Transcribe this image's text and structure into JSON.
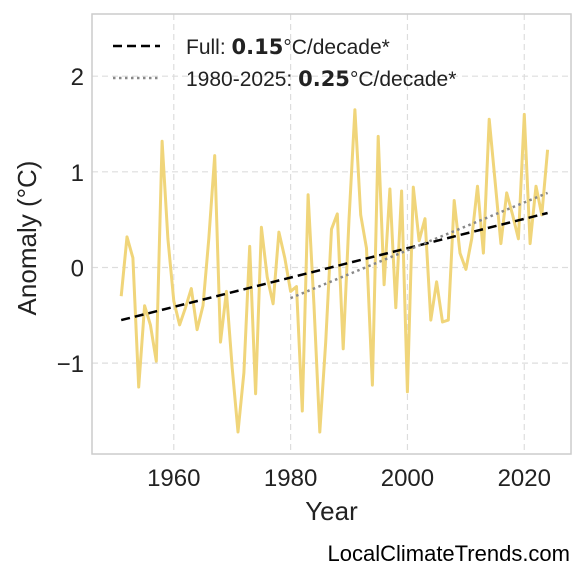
{
  "chart_data": {
    "type": "line",
    "xlabel": "Year",
    "ylabel": "Anomaly (°C)",
    "xlim": [
      1946,
      2028
    ],
    "ylim": [
      -1.95,
      2.65
    ],
    "x_ticks": [
      1960,
      1980,
      2000,
      2020
    ],
    "y_ticks": [
      -1,
      0,
      1,
      2
    ],
    "y_tick_labels": [
      "−1",
      "0",
      "1",
      "2"
    ],
    "grid": true,
    "legend_position": "top-left",
    "colors": {
      "anomaly": "#f0d57a",
      "full_trend": "#000000",
      "recent_trend": "#888888"
    },
    "series": [
      {
        "role": "anomaly",
        "x": [
          1951,
          1952,
          1953,
          1954,
          1955,
          1956,
          1957,
          1958,
          1959,
          1960,
          1961,
          1962,
          1963,
          1964,
          1965,
          1966,
          1967,
          1968,
          1969,
          1970,
          1971,
          1972,
          1973,
          1974,
          1975,
          1976,
          1977,
          1978,
          1979,
          1980,
          1981,
          1982,
          1983,
          1984,
          1985,
          1986,
          1987,
          1988,
          1989,
          1990,
          1991,
          1992,
          1993,
          1994,
          1995,
          1996,
          1997,
          1998,
          1999,
          2000,
          2001,
          2002,
          2003,
          2004,
          2005,
          2006,
          2007,
          2008,
          2009,
          2010,
          2011,
          2012,
          2013,
          2014,
          2015,
          2016,
          2017,
          2018,
          2019,
          2020,
          2021,
          2022,
          2023,
          2024
        ],
        "y": [
          -0.3,
          0.32,
          0.1,
          -1.25,
          -0.4,
          -0.6,
          -0.98,
          1.32,
          0.3,
          -0.35,
          -0.6,
          -0.42,
          -0.22,
          -0.65,
          -0.4,
          0.3,
          1.17,
          -0.78,
          -0.25,
          -1.05,
          -1.72,
          -1.1,
          0.22,
          -1.32,
          0.42,
          -0.1,
          -0.38,
          0.37,
          0.1,
          -0.25,
          -0.2,
          -1.5,
          0.76,
          -0.4,
          -1.72,
          -0.78,
          0.4,
          0.56,
          -0.85,
          0.5,
          1.65,
          0.55,
          0.2,
          -1.23,
          1.37,
          -0.18,
          0.82,
          -0.42,
          0.8,
          -1.3,
          0.84,
          0.28,
          0.51,
          -0.55,
          -0.15,
          -0.57,
          -0.55,
          0.7,
          0.15,
          -0.02,
          0.3,
          0.85,
          0.15,
          1.55,
          0.9,
          0.25,
          0.78,
          0.55,
          0.3,
          1.6,
          0.25,
          0.85,
          0.55,
          1.23
        ]
      },
      {
        "role": "full_trend",
        "x": [
          1951,
          2024
        ],
        "y": [
          -0.55,
          0.57
        ]
      },
      {
        "role": "recent_trend",
        "x": [
          1980,
          2024
        ],
        "y": [
          -0.32,
          0.78
        ]
      }
    ],
    "legend": [
      {
        "key": "full",
        "prefix": "Full: ",
        "value": "0.15",
        "suffix": "°C/decade*"
      },
      {
        "key": "recent",
        "prefix": "1980-2025: ",
        "value": "0.25",
        "suffix": "°C/decade*"
      }
    ]
  },
  "watermark": "LocalClimateTrends.com"
}
